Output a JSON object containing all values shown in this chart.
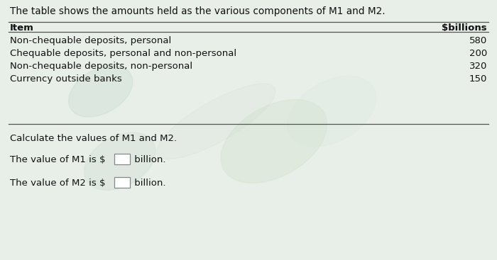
{
  "intro_text": "The table shows the amounts held as the various components of M1 and M2.",
  "col_header_item": "Item",
  "col_header_value": "$billions",
  "table_rows": [
    [
      "Non-chequable deposits, personal",
      "580"
    ],
    [
      "Chequable deposits, personal and non-personal",
      "200"
    ],
    [
      "Non-chequable deposits, non-personal",
      "320"
    ],
    [
      "Currency outside banks",
      "150"
    ]
  ],
  "calculate_text": "Calculate the values of M1 and M2.",
  "m1_text_before": "The value of M1 is $",
  "m1_text_after": " billion.",
  "m2_text_before": "The value of M2 is $",
  "m2_text_after": " billion.",
  "bg_color": "#e8eee8",
  "font_size": 9.5,
  "header_font_size": 9.5,
  "intro_font_size": 9.8,
  "line_color": "#555555",
  "text_color": "#111111",
  "box_edge_color": "#888888"
}
